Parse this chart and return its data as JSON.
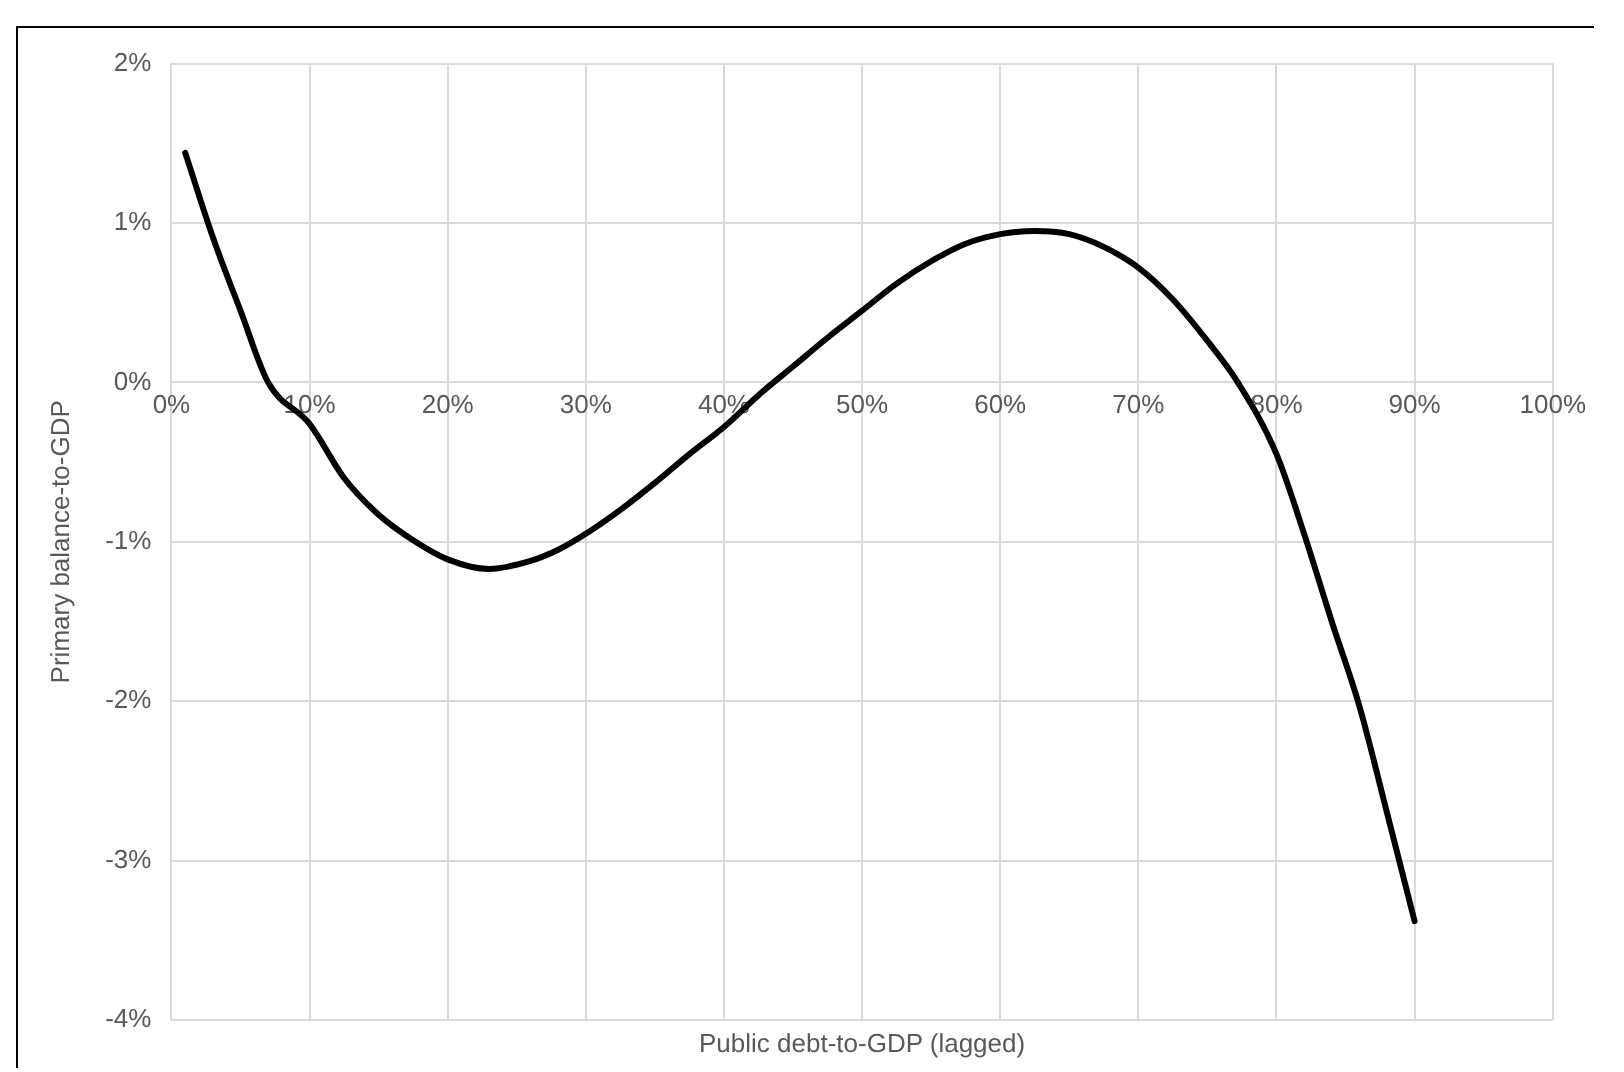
{
  "chart_data": {
    "type": "line",
    "xlabel": "Public debt-to-GDP (lagged)",
    "ylabel": "Primary balance-to-GDP",
    "x": [
      1,
      3,
      5,
      7,
      10,
      12.5,
      15,
      17.5,
      20,
      23,
      26,
      28,
      30,
      32.5,
      35,
      37.5,
      40,
      42.5,
      45,
      47.5,
      50,
      52.5,
      55,
      57.5,
      60,
      62.5,
      65,
      67.5,
      70,
      72.5,
      75,
      77.2,
      80,
      82,
      84,
      86,
      88,
      90
    ],
    "series": [
      {
        "color": "#000000",
        "values": [
          1.44,
          0.91,
          0.45,
          0.0,
          -0.26,
          -0.6,
          -0.83,
          -0.99,
          -1.11,
          -1.17,
          -1.12,
          -1.05,
          -0.95,
          -0.8,
          -0.63,
          -0.45,
          -0.28,
          -0.08,
          0.1,
          0.28,
          0.45,
          0.62,
          0.76,
          0.87,
          0.93,
          0.95,
          0.93,
          0.85,
          0.72,
          0.52,
          0.26,
          0.0,
          -0.45,
          -0.95,
          -1.5,
          -2.03,
          -2.7,
          -3.38
        ]
      }
    ],
    "xlim": [
      0,
      100
    ],
    "xticks": [
      {
        "value": 0,
        "label": "0%"
      },
      {
        "value": 10,
        "label": "10%"
      },
      {
        "value": 20,
        "label": "20%"
      },
      {
        "value": 30,
        "label": "30%"
      },
      {
        "value": 40,
        "label": "40%"
      },
      {
        "value": 50,
        "label": "50%"
      },
      {
        "value": 60,
        "label": "60%"
      },
      {
        "value": 70,
        "label": "70%"
      },
      {
        "value": 80,
        "label": "80%"
      },
      {
        "value": 90,
        "label": "90%"
      },
      {
        "value": 100,
        "label": "100%"
      }
    ],
    "ylim": [
      -4,
      2
    ],
    "yticks": [
      {
        "value": -4,
        "label": "-4%"
      },
      {
        "value": -3,
        "label": "-3%"
      },
      {
        "value": -2,
        "label": "-2%"
      },
      {
        "value": -1,
        "label": "-1%"
      },
      {
        "value": 0,
        "label": "0%"
      },
      {
        "value": 1,
        "label": "1%"
      },
      {
        "value": 2,
        "label": "2%"
      }
    ],
    "grid": true,
    "legend": false,
    "marker": "none",
    "line_style": "solid"
  }
}
